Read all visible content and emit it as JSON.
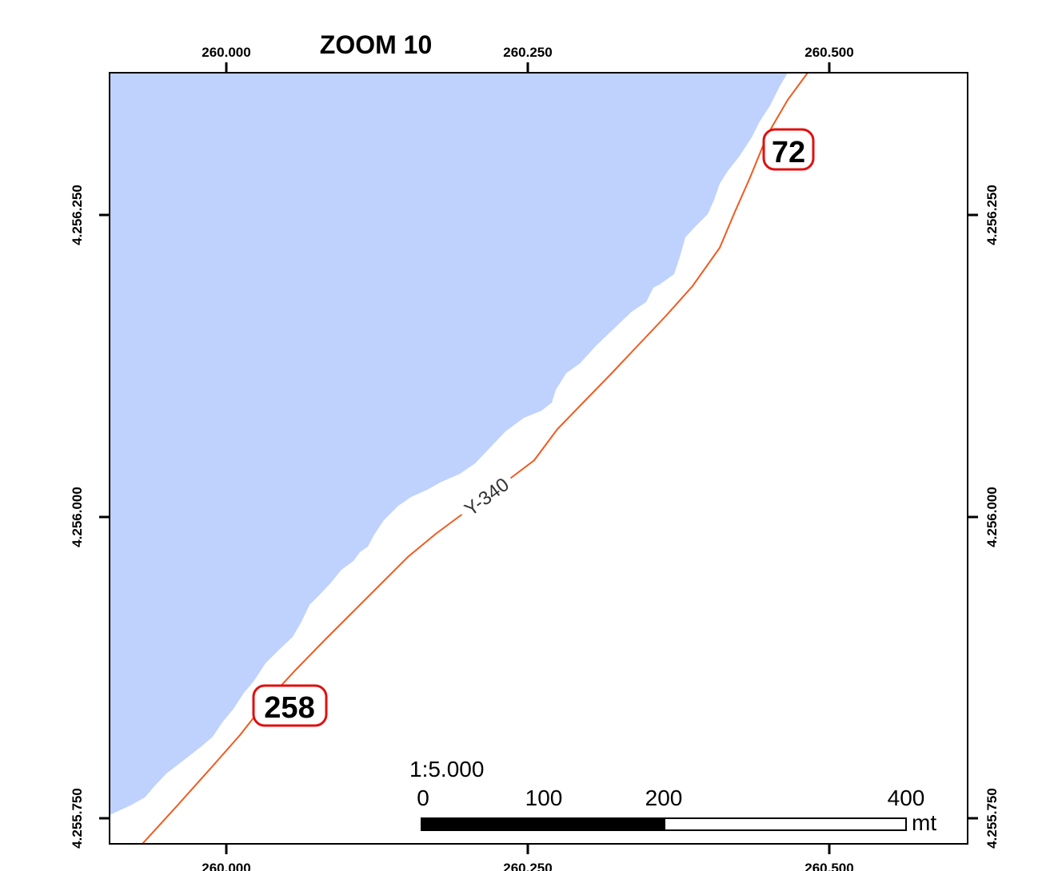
{
  "title": "ZOOM 10",
  "colors": {
    "water": "#bfd1fd",
    "road": "#f05a1e",
    "marker_outline": "#e01010",
    "frame": "#000000"
  },
  "x_ticks": {
    "top": [
      "260.000",
      "260.250",
      "260.500"
    ],
    "bottom": [
      "260.000",
      "260.250",
      "260.500"
    ]
  },
  "y_ticks": {
    "left": [
      "4.256.250",
      "4.256.000",
      "4.255.750"
    ],
    "right": [
      "4.256.250",
      "4.256.000",
      "4.255.750"
    ]
  },
  "road": {
    "label": "Y-340"
  },
  "markers": [
    {
      "label": "72"
    },
    {
      "label": "258"
    }
  ],
  "scale_bar": {
    "ratio": "1:5.000",
    "labels": [
      "0",
      "100",
      "200",
      "400"
    ],
    "unit": "mt"
  }
}
